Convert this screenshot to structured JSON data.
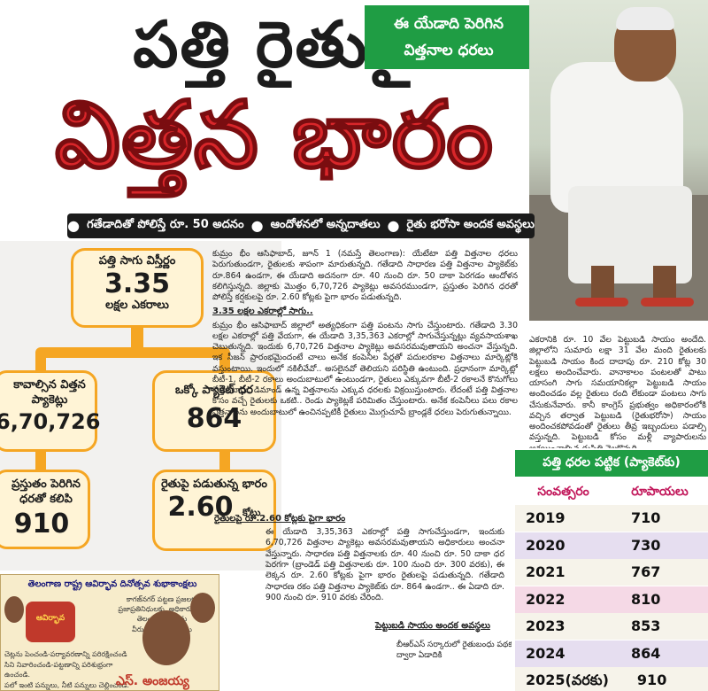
{
  "headline": {
    "line1": "పత్తి రైతుపై",
    "line2": "విత్తన భారం"
  },
  "green_box": [
    "ఈ యేడాది పెరిగిన",
    "విత్తనాల ధరలు"
  ],
  "subheadings": [
    "గతేడాదితో పోలిస్తే రూ. 50 అదనం",
    "ఆందోళనలో అన్నదాతలు",
    "రైతు భరోసా అందక అవస్థలు"
  ],
  "infographic": {
    "top": {
      "label": "పత్తి సాగు విస్తీర్ణం",
      "value": "3.35",
      "unit": "లక్షల ఎకరాలు"
    },
    "left1": {
      "label": "కావాల్సిన విత్తన ప్యాకెట్లు",
      "value": "6,70,726"
    },
    "right1": {
      "label": "ఒక్కో ప్యాకెట్ ధర",
      "value": "864"
    },
    "left2": {
      "label": "ప్రస్తుతం పెరిగిన ధరతో కలిపి",
      "value": "910"
    },
    "right2": {
      "label": "రైతుపై పడుతున్న భారం",
      "value": "2.60",
      "unit": "కోట్లు"
    }
  },
  "article": {
    "p1": "కుమ్రం భీం ఆసిఫాబాద్‌, జూన్‌ 1 (నమస్తే తెలంగాణ): యేటేటా పత్తి విత్తనాల ధరలు పెరుగుతుండగా, రైతులకు శాపంగా మారుతున్నది. గతేడాది సాధారణ పత్తి విత్తనాల ప్యాకెట్‌కు రూ.864 ఉండగా, ఈ యేడాది అదనంగా రూ. 40 నుంచి రూ. 50 దాకా పెరగడం ఆందోళన కలిగిస్తున్నది. జిల్లాకు మొత్తం 6,70,726 ప్యాకెట్లు అవసరముండగా, ప్రస్తుతం పెరిగిన ధరతో పోలిస్తే కర్షకులపై రూ. 2.60 కోట్లకు పైగా భారం పడుతున్నది.",
    "sub1": "3.35 లక్షల ఎకరాల్లో సాగు..",
    "p2": "కుమ్రం భీం ఆసిఫాబాద్‌ జిల్లాలో అత్యధికంగా పత్తి పంటను సాగు చేస్తుంటారు. గతేడాది 3.30 లక్షల ఎకరాల్లో పత్తి వేయగా, ఈ యేడాది 3,35,363 ఎకరాల్లో సాగుచేస్తున్నట్లు వ్యవసాయశాఖ చెబుతున్నది. ఇందుకు 6,70,726 విత్తనాల ప్యాకెట్లు అవసరమవుతాయని అంచనా వేస్తున్నది. ఇక సీజన్‌ ప్రారంభమైందంటే చాలు అనేక కంపెనీల పేర్లతో పదులరకాల విత్తనాలు మార్కెట్లోకి వస్తుంటాయి. ఇందులో నకిలీవేవో.. అసలైనవో తెలియని పరిస్థితి ఉంటుంది. ప్రధానంగా మార్కెట్లో బీటీ-1, బీటీ-2 రకాలు అందుబాటులో ఉంటుండగా, రైతులు ఎక్కువగా బీటీ-2 రకాలనే కొనుగోలు చేస్తుంటారు. డిమాండ్‌ ఉన్న విత్తనాలను ఎక్కువ ధరలకు విక్రయిస్తుంటారు. లేదంటే పత్తి విత్తనాల కోసం వచ్చే రైతులకు ఒకటి.. రెండు ప్యాకెట్లకే పరిమితం చేస్తుంటారు. అనేక కంపెనీలు పలు రకాల విత్తనాలను అందుబాటులో ఉంచినప్పటికీ రైతులు మొగ్గుచూపే బ్రాండ్లకే ధరలు పెరుగుతున్నాయి.",
    "sub2": "రైతులపై రూ.2.60 కోట్లకు పైగా భారం",
    "p3": "ఈ యేడాది 3,35,363 ఎకరాల్లో పత్తి సాగుచేస్తుండగా, ఇందుకు 6,70,726 విత్తనాల ప్యాకెట్లు అవసరమవుతాయని అధికారులు అంచనా వేస్తున్నారు. సాధారణ పత్తి విత్తనాలకు రూ. 40 నుంచి రూ. 50 దాకా ధర పెరగగా (బ్రాండెడ్‌ పత్తి విత్తనాలకు రూ. 100 నుంచి రూ. 300 వరకు), ఈ లెక్కన రూ. 2.60 కోట్లకు పైగా భారం రైతులపై పడుతున్నది. గతేడాది సాధారణ రకం పత్తి విత్తనాల ప్యాకెట్‌కు రూ. 864 ఉండగా.. ఈ ఏడాది రూ. 900 నుంచి రూ. 910 వరకు చేరింది.",
    "sub3": "పెట్టుబడి సాయం అందక అవస్థలు",
    "p4a": "బీఆర్‌ఎస్‌ సర్కారులో రైతుబంధు పథకం ద్వారా ఏడాదికి",
    "p5": "ఎకరానికి రూ. 10 వేల పెట్టుబడి సాయం అందేది. జిల్లాలోని సుమారు లక్షా 31 వేల మంది రైతులకు పెట్టుబడి సాయం కింద దాదాపు రూ. 210 కోట్ల 30 లక్షలు అందించేవారు. వానాకాలం పంటలతో పాటు యాసంగి సాగు సమయానికల్లా పెట్టుబడి సాయం అందించడం వల్ల రైతులు రంది లేకుండా పంటలు సాగు చేసుకునేవారు. కానీ కాంగ్రెస్‌ ప్రభుత్వం అధికారంలోకి వచ్చిన తర్వాత పెట్టుబడి (రైతుభరోసా) సాయం అందించకపోవడంతో రైతులు తీవ్ర ఇబ్బందులు పడాల్సి వస్తున్నది. పెట్టుబడి కోసం మళ్లీ వ్యాపారులను ఆశ్రయించాల్సిన దుస్థితి నెలకొన్నది."
  },
  "price_table": {
    "title": "పత్తి ధరల పట్టిక (ప్యాకెట్‌కు)",
    "col_year": "సంవత్సరం",
    "col_price": "రూపాయలు",
    "rows": [
      {
        "year": "2019",
        "price": "710",
        "bg": "#f6f3ea"
      },
      {
        "year": "2020",
        "price": "730",
        "bg": "#e6def0"
      },
      {
        "year": "2021",
        "price": "767",
        "bg": "#f6f3ea"
      },
      {
        "year": "2022",
        "price": "810",
        "bg": "#f5d9e6"
      },
      {
        "year": "2023",
        "price": "853",
        "bg": "#f6f3ea"
      },
      {
        "year": "2024",
        "price": "864",
        "bg": "#e6def0"
      },
      {
        "year": "2025(వరకు)",
        "price": "910",
        "bg": "#f6f3ea"
      }
    ]
  },
  "ad": {
    "title": "తెలంగాణ రాష్ట్ర ఆవిర్భావ దినోత్సవ శుభాకాంక్షలు",
    "lines": [
      "కాగజ్‌నగర్‌ పట్టణ ప్రజలకు",
      "ప్రజాప్రతినిధులకు, అధికారులకు,",
      "తెలంగాణ ఉద్యమ",
      "వీరులకు శుభాకాంక్షలు"
    ],
    "low_lines": [
      "చెట్లను పెంచండి-పర్యావరణాన్ని పరిరక్షించండి",
      "సిని నివారించండి-పట్టణాన్ని పరిశుభ్రంగా ఉంచండి.",
      "పలో ఇంటి పన్నులు, నీటి పన్నులు చెల్లించండి."
    ],
    "logo": "ఆవిర్భావ",
    "name": "ఎస్‌. అంజయ్య"
  },
  "colors": {
    "headline_red": "#d9262a",
    "green": "#1f9d44",
    "orange": "#f5a623",
    "pink_header": "#c2185b"
  }
}
